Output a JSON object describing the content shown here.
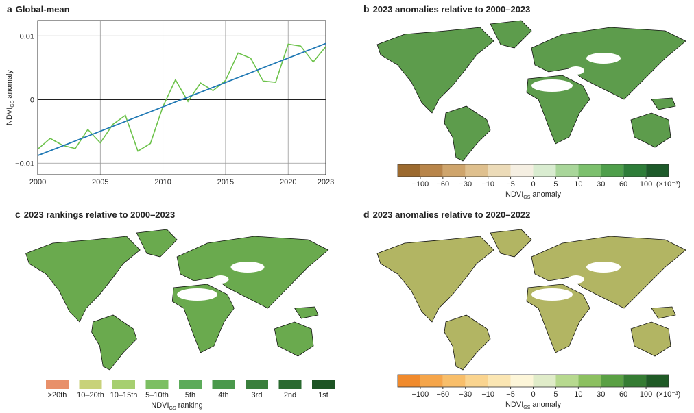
{
  "chart_data": [
    {
      "type": "line",
      "label": "a",
      "title": "Global-mean",
      "y_label": [
        "NDVI",
        "GS",
        "anomaly"
      ],
      "x": [
        2000,
        2001,
        2002,
        2003,
        2004,
        2005,
        2006,
        2007,
        2008,
        2009,
        2010,
        2011,
        2012,
        2013,
        2014,
        2015,
        2016,
        2017,
        2018,
        2019,
        2020,
        2021,
        2022,
        2023
      ],
      "xlim": [
        2000,
        2023
      ],
      "xticks": [
        2000,
        2005,
        2010,
        2015,
        2020,
        2023
      ],
      "ylim": [
        -0.0118,
        0.0124
      ],
      "yticks": [
        {
          "value": -0.01,
          "label": "−0.01"
        },
        0,
        0.01
      ],
      "grid": true,
      "zero_line": true,
      "series": [
        {
          "color": "#6cc24a",
          "values": [
            -0.0078,
            -0.0061,
            -0.0072,
            -0.0077,
            -0.0047,
            -0.0068,
            -0.0039,
            -0.0025,
            -0.0081,
            -0.0069,
            -0.0011,
            0.0031,
            -0.0003,
            0.0026,
            0.0014,
            0.003,
            0.0073,
            0.0065,
            0.0029,
            0.0027,
            0.0087,
            0.0084,
            0.0059,
            0.0083
          ]
        }
      ],
      "trend": {
        "color": "#1f78b4",
        "x": [
          2000,
          2023
        ],
        "values": [
          -0.0088,
          0.0088
        ]
      }
    },
    {
      "type": "map",
      "label": "b",
      "title": "2023 anomalies relative to 2000–2023",
      "colorbar": {
        "colors": [
          "#9c6a2f",
          "#b8854a",
          "#cfa56c",
          "#dfc08e",
          "#ecdbb8",
          "#f5efe2",
          "#d9ecd0",
          "#a9d69a",
          "#7cc06d",
          "#4f9f4b",
          "#2e7d39",
          "#1d5a2a"
        ],
        "ticks": [
          {
            "value": -100,
            "label": "−100"
          },
          {
            "value": -60,
            "label": "−60"
          },
          {
            "value": -30,
            "label": "−30"
          },
          {
            "value": -10,
            "label": "−10"
          },
          {
            "value": -5,
            "label": "−5"
          },
          0,
          5,
          10,
          30,
          60,
          100
        ],
        "unit": "(×10⁻³)",
        "label": [
          "NDVI",
          "GS",
          "anomaly"
        ]
      }
    },
    {
      "type": "map",
      "label": "c",
      "title": "2023 rankings relative to 2000–2023",
      "legend": {
        "colors": [
          "#e8906a",
          "#c8d27a",
          "#a6cf70",
          "#7cbf63",
          "#5cab5a",
          "#4a994c",
          "#3a7f3c",
          "#2a6a30",
          "#1d5424"
        ],
        "categories": [
          ">20th",
          "10–20th",
          "10–15th",
          "5–10th",
          "5th",
          "4th",
          "3rd",
          "2nd",
          "1st"
        ],
        "label": [
          "NDVI",
          "GS",
          "ranking"
        ]
      }
    },
    {
      "type": "map",
      "label": "d",
      "title": "2023 anomalies relative to 2020–2022",
      "colorbar": {
        "colors": [
          "#f08a2c",
          "#f5a54a",
          "#f8be6a",
          "#fad48f",
          "#fbe6b3",
          "#fdf6d9",
          "#e0ecc9",
          "#b7d98f",
          "#8cc060",
          "#5aa044",
          "#357c33",
          "#1f5a26"
        ],
        "ticks": [
          {
            "value": -100,
            "label": "−100"
          },
          {
            "value": -60,
            "label": "−60"
          },
          {
            "value": -30,
            "label": "−30"
          },
          {
            "value": -10,
            "label": "−10"
          },
          {
            "value": -5,
            "label": "−5"
          },
          0,
          5,
          10,
          30,
          60,
          100
        ],
        "unit": "(×10⁻³)",
        "label": [
          "NDVI",
          "GS",
          "anomaly"
        ]
      }
    }
  ]
}
